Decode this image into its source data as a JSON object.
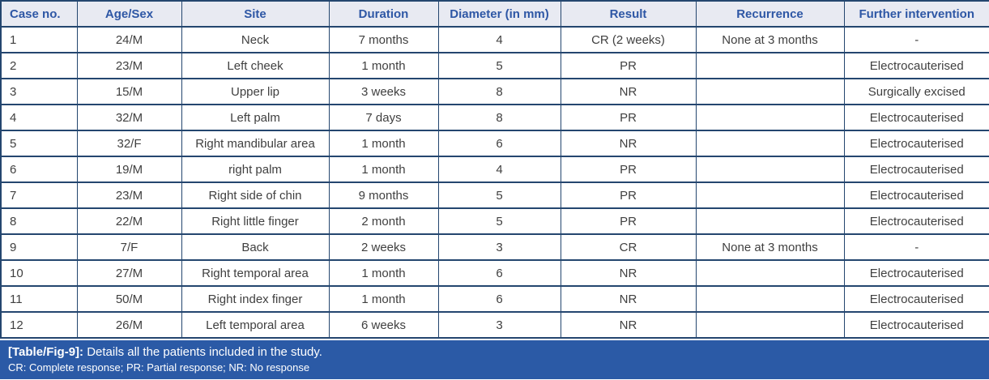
{
  "colors": {
    "border_navy": "#24466f",
    "header_bg": "#e8eaf2",
    "header_text": "#2e57a5",
    "body_text": "#404040",
    "caption_bg": "#2b5aa6",
    "caption_text": "#ffffff"
  },
  "table": {
    "columns": [
      "Case no.",
      "Age/Sex",
      "Site",
      "Duration",
      "Diameter (in mm)",
      "Result",
      "Recurrence",
      "Further intervention"
    ],
    "rows": [
      [
        "1",
        "24/M",
        "Neck",
        "7 months",
        "4",
        "CR (2 weeks)",
        "None at 3 months",
        "-"
      ],
      [
        "2",
        "23/M",
        "Left cheek",
        "1 month",
        "5",
        "PR",
        "",
        "Electrocauterised"
      ],
      [
        "3",
        "15/M",
        "Upper lip",
        "3 weeks",
        "8",
        "NR",
        "",
        "Surgically excised"
      ],
      [
        "4",
        "32/M",
        "Left palm",
        "7 days",
        "8",
        "PR",
        "",
        "Electrocauterised"
      ],
      [
        "5",
        "32/F",
        "Right mandibular area",
        "1 month",
        "6",
        "NR",
        "",
        "Electrocauterised"
      ],
      [
        "6",
        "19/M",
        "right palm",
        "1 month",
        "4",
        "PR",
        "",
        "Electrocauterised"
      ],
      [
        "7",
        "23/M",
        "Right side of chin",
        "9 months",
        "5",
        "PR",
        "",
        "Electrocauterised"
      ],
      [
        "8",
        "22/M",
        "Right little finger",
        "2 month",
        "5",
        "PR",
        "",
        "Electrocauterised"
      ],
      [
        "9",
        "7/F",
        "Back",
        "2 weeks",
        "3",
        "CR",
        "None at 3 months",
        "-"
      ],
      [
        "10",
        "27/M",
        "Right temporal area",
        "1 month",
        "6",
        "NR",
        "",
        "Electrocauterised"
      ],
      [
        "11",
        "50/M",
        "Right index finger",
        "1 month",
        "6",
        "NR",
        "",
        "Electrocauterised"
      ],
      [
        "12",
        "26/M",
        "Left temporal area",
        "6 weeks",
        "3",
        "NR",
        "",
        "Electrocauterised"
      ]
    ]
  },
  "caption": {
    "label": "[Table/Fig-9]:",
    "text": "Details all the patients included in the study.",
    "legend": "CR: Complete response; PR: Partial response; NR: No response"
  }
}
